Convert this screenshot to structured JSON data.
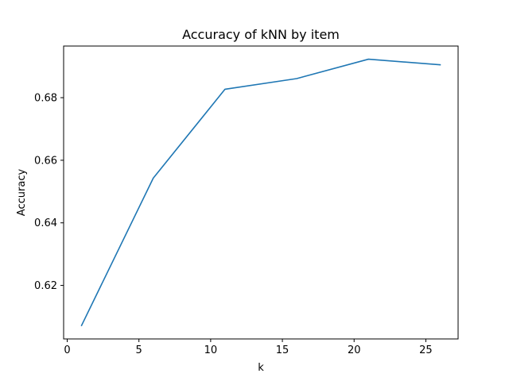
{
  "chart_data": {
    "type": "line",
    "title": "Accuracy of kNN by item",
    "xlabel": "k",
    "ylabel": "Accuracy",
    "xlim": [
      -0.25,
      27.25
    ],
    "ylim": [
      0.6029,
      0.6965
    ],
    "x_ticks": [
      0,
      5,
      10,
      15,
      20,
      25
    ],
    "x_tick_labels": [
      "0",
      "5",
      "10",
      "15",
      "20",
      "25"
    ],
    "y_ticks": [
      0.62,
      0.64,
      0.66,
      0.68
    ],
    "y_tick_labels": [
      "0.62",
      "0.64",
      "0.66",
      "0.68"
    ],
    "grid": false,
    "series": [
      {
        "color": "#1f77b4",
        "x": [
          1,
          6,
          11,
          16,
          21,
          26
        ],
        "y": [
          0.6072,
          0.6543,
          0.6827,
          0.6861,
          0.6923,
          0.6905
        ]
      }
    ]
  }
}
